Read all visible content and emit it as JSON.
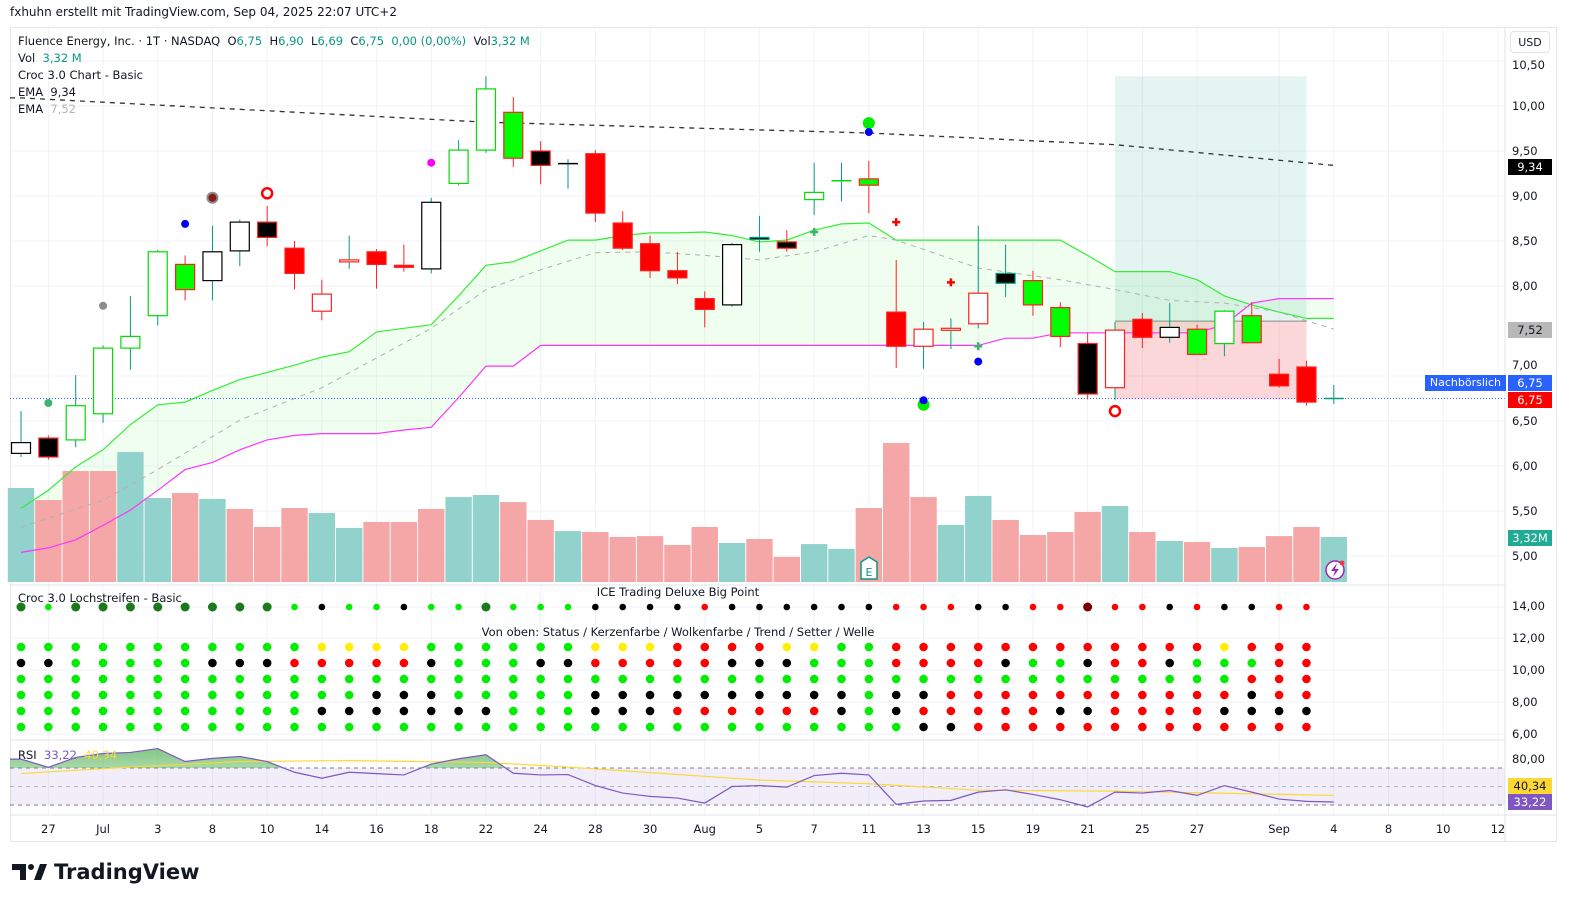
{
  "header": {
    "credit": "fxhuhn erstellt mit TradingView.com, Sep 04, 2025 22:07 UTC+2"
  },
  "legend": {
    "symbol": "Fluence Energy, Inc. · 1T · NASDAQ",
    "o_label": "O",
    "o": "6,75",
    "h_label": "H",
    "h": "6,90",
    "l_label": "L",
    "l": "6,69",
    "c_label": "C",
    "c": "6,75",
    "change": "0,00 (0,00%)",
    "vol_label": "Vol",
    "vol": "3,32 M",
    "vol_row_label": "Vol",
    "vol_row_value": "3,32 M",
    "croc": "Croc 3.0 Chart - Basic",
    "ema1_label": "EMA",
    "ema1": "9,34",
    "ema2_label": "EMA",
    "ema2": "7,52"
  },
  "price_axis": {
    "currency": "USD",
    "ticks": [
      {
        "p": 10.5,
        "t": "10,50"
      },
      {
        "p": 10.0,
        "t": "10,00"
      },
      {
        "p": 9.5,
        "t": "9,50"
      },
      {
        "p": 9.0,
        "t": "9,00"
      },
      {
        "p": 8.5,
        "t": "8,50"
      },
      {
        "p": 8.0,
        "t": "8,00"
      },
      {
        "p": 7.0,
        "t": "7,00"
      },
      {
        "p": 6.5,
        "t": "6,50"
      },
      {
        "p": 6.0,
        "t": "6,00"
      },
      {
        "p": 5.5,
        "t": "5,50"
      },
      {
        "p": 5.0,
        "t": "5,00"
      }
    ],
    "ema1_tag": "9,34",
    "ema2_tag": "7,52",
    "afterhours_label": "Nachbörslich",
    "afterhours_tag": "6,75",
    "last_tag": "6,75",
    "volume_tag": "3,32M"
  },
  "colors": {
    "up": "#089981",
    "down": "#f23645",
    "vol_up": "#92d2cc",
    "vol_down": "#f5a7a7",
    "cloud_line": "#33ee33",
    "base_line": "#ff33ff",
    "rsi": "#7e57c2",
    "rsi_ma": "#fdd835"
  },
  "chart_data": {
    "type": "candlestick",
    "title": "Fluence Energy, Inc. · 1T · NASDAQ",
    "ylim": [
      4.9,
      10.6
    ],
    "candle_fields": [
      "open",
      "high",
      "low",
      "close",
      "style"
    ],
    "candles": [
      [
        6.14,
        6.61,
        6.1,
        6.26,
        "wb"
      ],
      [
        6.31,
        6.34,
        6.07,
        6.1,
        "kr"
      ],
      [
        6.29,
        7.01,
        6.21,
        6.67,
        "hg"
      ],
      [
        6.58,
        7.34,
        6.48,
        7.31,
        "hg"
      ],
      [
        7.31,
        7.89,
        7.07,
        7.44,
        "hg"
      ],
      [
        7.67,
        8.4,
        7.56,
        8.38,
        "hg"
      ],
      [
        8.24,
        8.34,
        7.84,
        7.96,
        "gr"
      ],
      [
        8.06,
        8.67,
        7.84,
        8.38,
        "wb"
      ],
      [
        8.39,
        8.74,
        8.22,
        8.71,
        "wb"
      ],
      [
        8.71,
        8.89,
        8.44,
        8.54,
        "kr"
      ],
      [
        8.42,
        8.5,
        7.96,
        8.14,
        "rr"
      ],
      [
        7.91,
        8.07,
        7.62,
        7.72,
        "hr"
      ],
      [
        8.27,
        8.56,
        8.19,
        8.29,
        "hr"
      ],
      [
        8.38,
        8.41,
        7.97,
        8.24,
        "rr"
      ],
      [
        8.23,
        8.46,
        8.16,
        8.21,
        "rr"
      ],
      [
        8.19,
        8.98,
        8.14,
        8.93,
        "wb"
      ],
      [
        9.14,
        9.62,
        9.12,
        9.51,
        "hg"
      ],
      [
        9.51,
        10.33,
        9.48,
        10.19,
        "hg"
      ],
      [
        9.93,
        10.1,
        9.32,
        9.42,
        "gr"
      ],
      [
        9.5,
        9.61,
        9.13,
        9.34,
        "kr"
      ],
      [
        9.36,
        9.41,
        9.08,
        9.36,
        "dk"
      ],
      [
        9.47,
        9.51,
        8.71,
        8.81,
        "rr"
      ],
      [
        8.7,
        8.83,
        8.4,
        8.42,
        "rr"
      ],
      [
        8.47,
        8.56,
        8.09,
        8.17,
        "rr"
      ],
      [
        8.17,
        8.38,
        8.02,
        8.09,
        "rr"
      ],
      [
        7.86,
        7.94,
        7.54,
        7.74,
        "rr"
      ],
      [
        7.79,
        8.48,
        7.77,
        8.46,
        "wb"
      ],
      [
        8.52,
        8.78,
        8.38,
        8.54,
        "kt"
      ],
      [
        8.49,
        8.62,
        8.38,
        8.42,
        "kr"
      ],
      [
        8.96,
        9.37,
        8.79,
        9.04,
        "hg"
      ],
      [
        9.17,
        9.37,
        8.94,
        9.17,
        "dg"
      ],
      [
        9.19,
        9.39,
        8.81,
        9.12,
        "gr"
      ],
      [
        7.71,
        8.29,
        7.09,
        7.33,
        "rr"
      ],
      [
        7.33,
        7.6,
        7.08,
        7.52,
        "hr"
      ],
      [
        7.51,
        7.64,
        7.3,
        7.53,
        "hr"
      ],
      [
        7.58,
        8.67,
        7.53,
        7.92,
        "hr"
      ],
      [
        8.03,
        8.46,
        7.88,
        8.14,
        "kt"
      ],
      [
        8.06,
        8.17,
        7.67,
        7.79,
        "gr"
      ],
      [
        7.76,
        7.82,
        7.32,
        7.44,
        "gr"
      ],
      [
        7.36,
        7.48,
        6.74,
        6.8,
        "kr"
      ],
      [
        6.87,
        7.6,
        6.73,
        7.51,
        "hr"
      ],
      [
        7.63,
        7.7,
        7.31,
        7.43,
        "rr"
      ],
      [
        7.43,
        7.81,
        7.37,
        7.54,
        "wb"
      ],
      [
        7.52,
        7.57,
        7.24,
        7.24,
        "gr"
      ],
      [
        7.36,
        7.73,
        7.22,
        7.72,
        "hg"
      ],
      [
        7.67,
        7.82,
        7.37,
        7.37,
        "gr"
      ],
      [
        7.02,
        7.19,
        6.87,
        6.89,
        "rr"
      ],
      [
        7.1,
        7.17,
        6.67,
        6.71,
        "rr"
      ],
      [
        6.75,
        6.9,
        6.69,
        6.75,
        "dt"
      ]
    ],
    "volume_millions": [
      6.94,
      6.05,
      8.19,
      8.19,
      9.59,
      6.2,
      6.57,
      6.13,
      5.39,
      4.06,
      5.46,
      5.09,
      3.99,
      4.43,
      4.43,
      5.39,
      6.27,
      6.42,
      5.9,
      4.58,
      3.76,
      3.69,
      3.32,
      3.39,
      2.73,
      4.06,
      2.88,
      3.17,
      1.85,
      2.8,
      2.44,
      5.46,
      10.26,
      6.27,
      4.21,
      6.35,
      4.58,
      3.47,
      3.69,
      5.17,
      5.61,
      3.69,
      3.03,
      2.95,
      2.51,
      2.58,
      3.39,
      4.06,
      3.32
    ],
    "volume_direction": "uddduududdduuddduuddudddddudduuddduuddddudududddu",
    "ema_slow": [
      [
        0,
        10.09
      ],
      [
        17,
        9.82
      ],
      [
        31,
        9.7
      ],
      [
        40,
        9.57
      ],
      [
        48,
        9.34
      ]
    ],
    "ema_fast": [
      [
        0,
        5.32
      ],
      [
        3,
        5.62
      ],
      [
        5,
        5.96
      ],
      [
        8,
        6.51
      ],
      [
        11,
        6.87
      ],
      [
        15,
        7.53
      ],
      [
        17,
        7.96
      ],
      [
        19,
        8.18
      ],
      [
        21,
        8.37
      ],
      [
        23,
        8.38
      ],
      [
        25,
        8.34
      ],
      [
        27,
        8.29
      ],
      [
        29,
        8.38
      ],
      [
        31,
        8.56
      ],
      [
        32,
        8.51
      ],
      [
        35,
        8.2
      ],
      [
        38,
        8.07
      ],
      [
        40,
        7.96
      ],
      [
        42,
        7.84
      ],
      [
        44,
        7.81
      ],
      [
        46,
        7.71
      ],
      [
        48,
        7.52
      ]
    ],
    "cloud_upper": [
      5.53,
      5.73,
      5.99,
      6.18,
      6.46,
      6.68,
      6.71,
      6.84,
      6.96,
      7.04,
      7.12,
      7.21,
      7.27,
      7.49,
      7.53,
      7.57,
      7.89,
      8.23,
      8.27,
      8.39,
      8.51,
      8.51,
      8.56,
      8.59,
      8.59,
      8.6,
      8.56,
      8.49,
      8.51,
      8.62,
      8.69,
      8.7,
      8.51,
      8.51,
      8.51,
      8.51,
      8.51,
      8.51,
      8.51,
      8.34,
      8.16,
      8.16,
      8.16,
      8.07,
      7.89,
      7.79,
      7.71,
      7.64,
      7.64
    ],
    "base_line": [
      5.04,
      5.09,
      5.18,
      5.34,
      5.51,
      5.73,
      5.96,
      6.04,
      6.18,
      6.29,
      6.34,
      6.36,
      6.36,
      6.36,
      6.4,
      6.43,
      6.76,
      7.11,
      7.11,
      7.34,
      7.34,
      7.34,
      7.34,
      7.34,
      7.34,
      7.34,
      7.34,
      7.34,
      7.34,
      7.34,
      7.34,
      7.34,
      7.34,
      7.34,
      7.34,
      7.34,
      7.42,
      7.42,
      7.48,
      7.48,
      7.48,
      7.48,
      7.48,
      7.48,
      7.57,
      7.81,
      7.86,
      7.86,
      7.86
    ],
    "markers": [
      [
        1,
        6.7,
        "dot",
        "#3cb371"
      ],
      [
        3,
        7.78,
        "dot",
        "#8c8c8c"
      ],
      [
        6,
        8.69,
        "dot",
        "#0000ff"
      ],
      [
        7,
        9.0,
        "dot",
        "#3cb371"
      ],
      [
        7,
        8.98,
        "bigdot",
        "#8c8c8c"
      ],
      [
        7,
        8.98,
        "dot",
        "#8b1a1a"
      ],
      [
        9,
        9.03,
        "ring",
        "#ff0000"
      ],
      [
        15,
        9.37,
        "dot",
        "#ff00ff"
      ],
      [
        31,
        9.81,
        "bigdot",
        "#00ee00"
      ],
      [
        31,
        9.71,
        "dot",
        "#0000ff"
      ],
      [
        29,
        8.6,
        "cross",
        "#3cb371"
      ],
      [
        32,
        8.71,
        "cross",
        "#ff0000"
      ],
      [
        34,
        8.04,
        "cross",
        "#ff0000"
      ],
      [
        35,
        7.33,
        "cross",
        "#3cb371"
      ],
      [
        35,
        7.16,
        "dot",
        "#0000ff"
      ],
      [
        33,
        6.68,
        "bigdot",
        "#00ee00"
      ],
      [
        33,
        6.73,
        "dot",
        "#0000ff"
      ],
      [
        40,
        6.61,
        "ring",
        "#ff0000"
      ]
    ],
    "position": {
      "from": 40,
      "to": 47,
      "target": 10.33,
      "entry": 7.61,
      "stop": 6.74
    },
    "last_price": 6.75
  },
  "x_axis": [
    {
      "i": 1,
      "t": "27"
    },
    {
      "i": 3,
      "t": "Jul"
    },
    {
      "i": 5,
      "t": "3"
    },
    {
      "i": 7,
      "t": "8"
    },
    {
      "i": 9,
      "t": "10"
    },
    {
      "i": 11,
      "t": "14"
    },
    {
      "i": 13,
      "t": "16"
    },
    {
      "i": 15,
      "t": "18"
    },
    {
      "i": 17,
      "t": "22"
    },
    {
      "i": 19,
      "t": "24"
    },
    {
      "i": 21,
      "t": "28"
    },
    {
      "i": 23,
      "t": "30"
    },
    {
      "i": 25,
      "t": "Aug"
    },
    {
      "i": 27,
      "t": "5"
    },
    {
      "i": 29,
      "t": "7"
    },
    {
      "i": 31,
      "t": "11"
    },
    {
      "i": 33,
      "t": "13"
    },
    {
      "i": 35,
      "t": "15"
    },
    {
      "i": 37,
      "t": "19"
    },
    {
      "i": 39,
      "t": "21"
    },
    {
      "i": 41,
      "t": "25"
    },
    {
      "i": 43,
      "t": "27"
    },
    {
      "i": 46,
      "t": "Sep"
    },
    {
      "i": 48,
      "t": "4"
    },
    {
      "i": 50,
      "t": "8"
    },
    {
      "i": 52,
      "t": "10"
    },
    {
      "i": 54,
      "t": "12"
    }
  ],
  "dots_panel": {
    "title": "Croc 3.0 Lochstreifen - Basic",
    "big_point_title": "ICE Trading Deluxe Big Point",
    "rows_title": "Von oben: Status / Kerzenfarbe / Wolkenfarbe / Trend / Setter / Welle",
    "axis": [
      "14,00",
      "12,00",
      "10,00",
      "8,00",
      "6,00"
    ],
    "big_point_row": "DGDDDDDDDDGKGGKGGDGGGKKKKRKKKKKKRRRKKRRMRRKRKKRR",
    "rows": [
      "GGGGGGGGGGGYYYYGGGGGGYYYRRRRYYGGRRRRRRRRRRRRYRRR",
      "KKGGGGGKKKRRRRRKGGGKKRRRRRKKKGGGRRRRKGGKRRKGGGRR",
      "GGGGGGGGGGGGGGGGGGGGGGGGGGGGGGGGGGGGGGGGGGGGGRRR",
      "GGGGGGGGGGGGGKKKGGGGGKKKKKKKKKKGKKRRRRRRRRRRRKRR",
      "GGGGGGGGGGGKKKKKKKGGGKKKRRRRRRKGKRRRRRKKRRRRKKKK",
      "GGGGGGGGGGGGGGGGGGGGGGGGGGGGGGGGGKKRRRRRRRRRRRRR"
    ],
    "palette": {
      "G": "#00ee00",
      "D": "#1b7a1b",
      "K": "#000000",
      "R": "#ff0000",
      "Y": "#ffee00",
      "M": "#7a0000"
    }
  },
  "rsi_panel": {
    "label": "RSI",
    "value": "33,22",
    "ma_value": "40,34",
    "axis_top": "80,00",
    "rsi": [
      79.6,
      70.7,
      81.4,
      85.7,
      86.8,
      91,
      77,
      80.4,
      82.5,
      77,
      65.4,
      58.9,
      65.4,
      63.9,
      62.5,
      74.3,
      80,
      84.3,
      64.3,
      62.5,
      62.9,
      51,
      42.9,
      39.3,
      37.5,
      32.1,
      50,
      51,
      49.3,
      61.8,
      64.3,
      62.5,
      30.7,
      34.3,
      35,
      43.9,
      46.4,
      41.4,
      35.7,
      27.9,
      43.9,
      42.9,
      45.7,
      40.4,
      51,
      43.9,
      36.4,
      33.9,
      33.22
    ],
    "ma": [
      [
        0,
        64
      ],
      [
        4,
        71
      ],
      [
        8,
        77
      ],
      [
        12,
        78
      ],
      [
        17,
        76
      ],
      [
        20,
        71
      ],
      [
        24,
        63
      ],
      [
        27,
        57
      ],
      [
        31,
        53
      ],
      [
        35,
        46
      ],
      [
        40,
        45
      ],
      [
        48,
        40.34
      ]
    ],
    "bands": [
      70,
      50,
      30
    ]
  },
  "badges": {
    "earnings": "E"
  },
  "brand": {
    "name": "TradingView"
  }
}
